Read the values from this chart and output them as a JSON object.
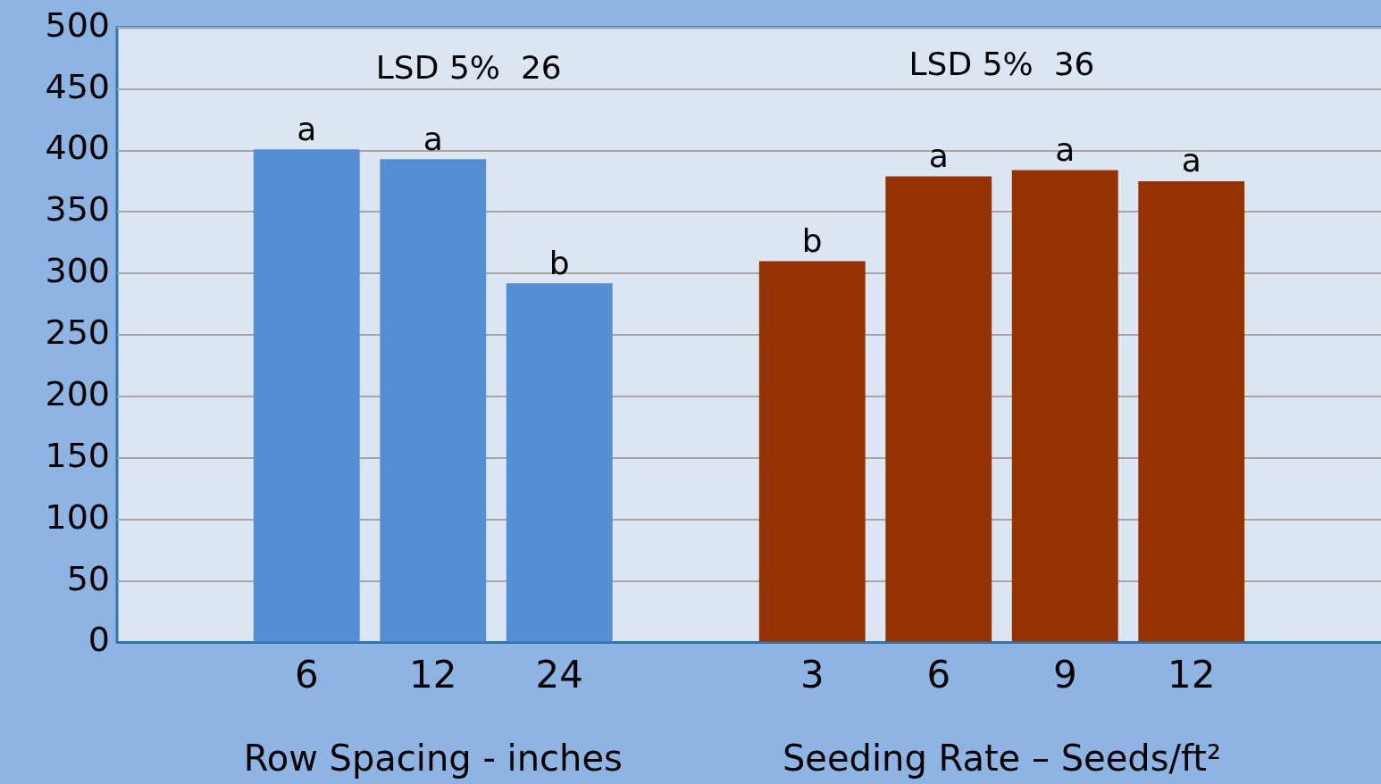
{
  "chart_data": {
    "type": "bar",
    "categories": [
      null,
      "6",
      "12",
      "24",
      null,
      "3",
      "6",
      "9",
      "12",
      null
    ],
    "values": [
      null,
      401,
      393,
      292,
      null,
      310,
      379,
      384,
      375,
      null
    ],
    "colors": [
      "#558ed5",
      "#558ed5",
      "#558ed5",
      "#558ed5",
      "#953200",
      "#953200",
      "#953200",
      "#953200",
      "#953200",
      "#953200"
    ],
    "value_labels": [
      null,
      "a",
      "a",
      "b",
      null,
      "b",
      "a",
      "a",
      "a",
      null
    ],
    "annotations": [
      "LSD 5%  26",
      "LSD 5%  36",
      "Row Spacing - inches",
      "Seeding Rate – Seeds/ft²"
    ],
    "ylim": [
      0,
      500
    ],
    "yticks": [
      0,
      50,
      100,
      150,
      200,
      250,
      300,
      350,
      400,
      450,
      500
    ],
    "grid": "y",
    "legend": false
  }
}
